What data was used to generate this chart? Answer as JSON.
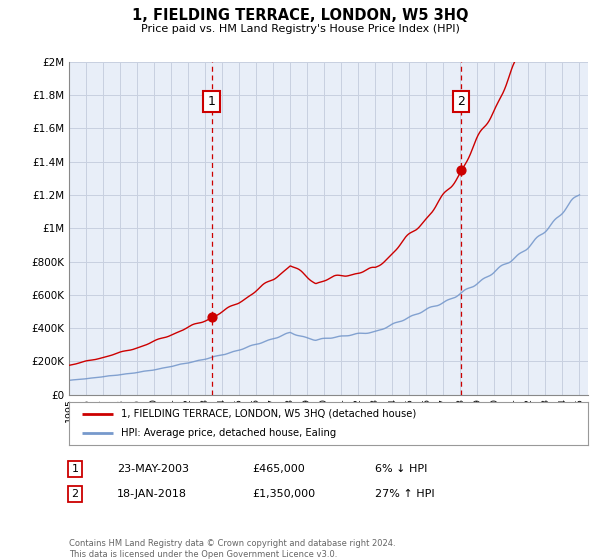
{
  "title": "1, FIELDING TERRACE, LONDON, W5 3HQ",
  "subtitle": "Price paid vs. HM Land Registry's House Price Index (HPI)",
  "ylim": [
    0,
    2000000
  ],
  "xlim_start": 1995.0,
  "xlim_end": 2025.5,
  "red_line_color": "#cc0000",
  "blue_line_color": "#7799cc",
  "plot_bg_color": "#e8eef8",
  "grid_color": "#c8d0e0",
  "sale1_x": 2003.388,
  "sale1_y": 465000,
  "sale2_x": 2018.046,
  "sale2_y": 1350000,
  "legend_line1": "1, FIELDING TERRACE, LONDON, W5 3HQ (detached house)",
  "legend_line2": "HPI: Average price, detached house, Ealing",
  "sale1_date": "23-MAY-2003",
  "sale1_price": "£465,000",
  "sale1_hpi": "6% ↓ HPI",
  "sale2_date": "18-JAN-2018",
  "sale2_price": "£1,350,000",
  "sale2_hpi": "27% ↑ HPI",
  "footer": "Contains HM Land Registry data © Crown copyright and database right 2024.\nThis data is licensed under the Open Government Licence v3.0.",
  "ytick_labels": [
    "£0",
    "£200K",
    "£400K",
    "£600K",
    "£800K",
    "£1M",
    "£1.2M",
    "£1.4M",
    "£1.6M",
    "£1.8M",
    "£2M"
  ],
  "ytick_values": [
    0,
    200000,
    400000,
    600000,
    800000,
    1000000,
    1200000,
    1400000,
    1600000,
    1800000,
    2000000
  ]
}
